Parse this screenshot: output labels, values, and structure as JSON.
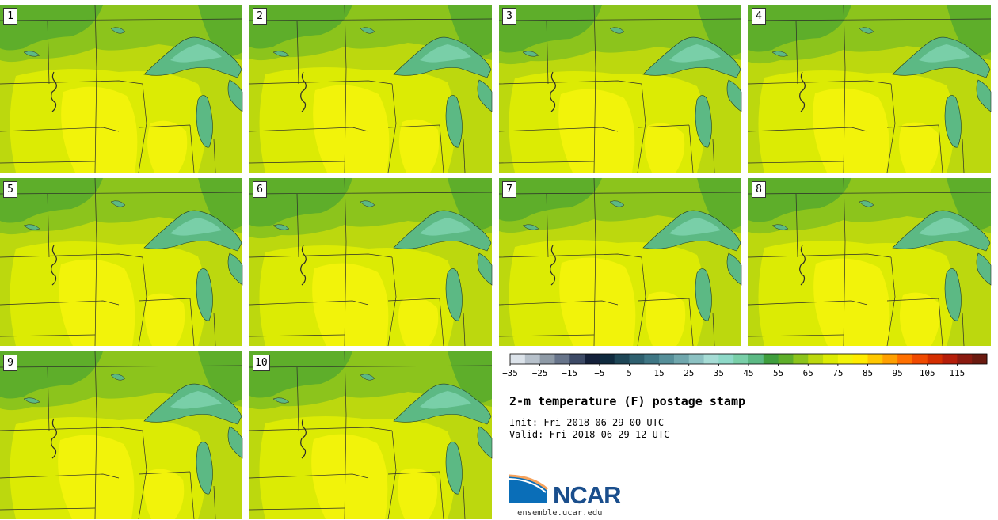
{
  "product": {
    "title": "2-m temperature (F) postage stamp",
    "init": "Init: Fri 2018-06-29 00 UTC",
    "valid": "Valid: Fri 2018-06-29 12 UTC"
  },
  "members": [
    {
      "label": "1"
    },
    {
      "label": "2"
    },
    {
      "label": "3"
    },
    {
      "label": "4"
    },
    {
      "label": "5"
    },
    {
      "label": "6"
    },
    {
      "label": "7"
    },
    {
      "label": "8"
    },
    {
      "label": "9"
    },
    {
      "label": "10"
    }
  ],
  "colorbar": {
    "ticks": [
      "−35",
      "−25",
      "−15",
      "−5",
      "5",
      "15",
      "25",
      "35",
      "45",
      "55",
      "65",
      "75",
      "85",
      "95",
      "105",
      "115"
    ],
    "colors": [
      "#dce3ea",
      "#b7c1cb",
      "#8e9aa6",
      "#67748a",
      "#3d4a66",
      "#14203a",
      "#0f2a3e",
      "#1e4656",
      "#2e5f6e",
      "#3f7684",
      "#568f99",
      "#70a7ad",
      "#8cc1c2",
      "#a6dcd5",
      "#8ed9c8",
      "#79cfa8",
      "#5cb984",
      "#3f9e3d",
      "#5eae2a",
      "#8cc41c",
      "#bcd80e",
      "#dceb04",
      "#f2f30a",
      "#ffec00",
      "#ffc800",
      "#ffa000",
      "#ff7000",
      "#f04a00",
      "#d42e00",
      "#b51e0a",
      "#8a1a10",
      "#6a1a10"
    ]
  },
  "colors": {
    "land_warm": "#f2f30a",
    "land_mild": "#dceb04",
    "land_base": "#bcd80e",
    "land_cool": "#8cc41c",
    "land_cooler": "#5eae2a",
    "lake": "#5cb984",
    "lake_deep": "#79cfa8"
  },
  "logo": {
    "name": "NCAR",
    "url": "ensemble.ucar.edu"
  }
}
